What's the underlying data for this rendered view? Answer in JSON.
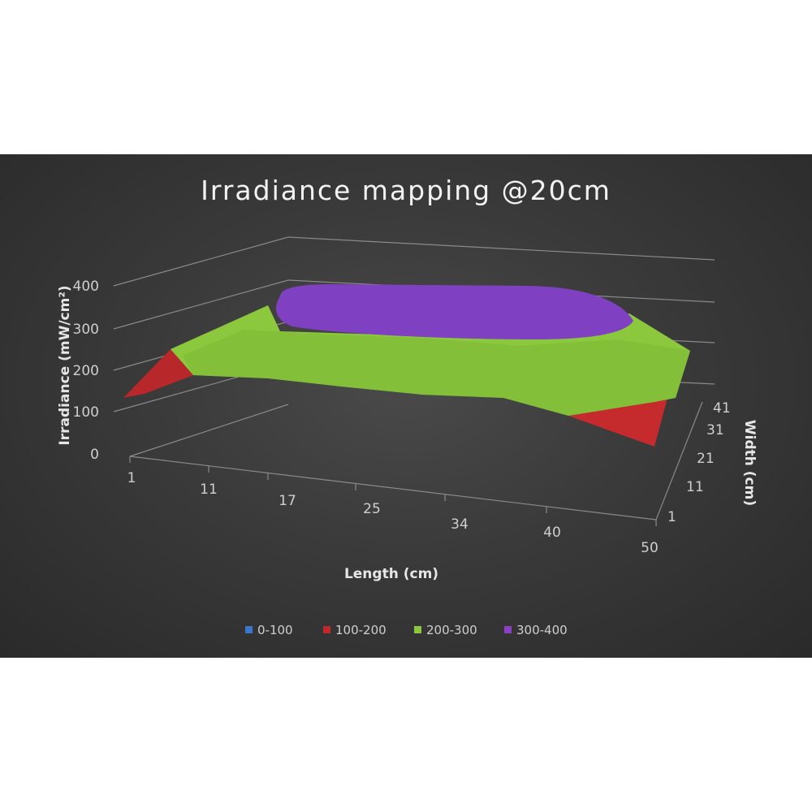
{
  "chart_data": {
    "type": "surface-3d",
    "title": "Irradiance mapping @20cm",
    "xlabel": "Length (cm)",
    "ylabel": "Width (cm)",
    "zlabel": "Irradiance (mW/cm²)",
    "x_ticks": [
      "1",
      "11",
      "17",
      "25",
      "34",
      "40",
      "50"
    ],
    "y_ticks": [
      "1",
      "11",
      "21",
      "31",
      "41"
    ],
    "z_ticks": [
      "0",
      "100",
      "200",
      "300",
      "400"
    ],
    "zlim": [
      0,
      400
    ],
    "grid": true,
    "legend_position": "bottom",
    "bands": [
      {
        "label": "0-100",
        "range": [
          0,
          100
        ],
        "color": "#3a78c9"
      },
      {
        "label": "100-200",
        "range": [
          100,
          200
        ],
        "color": "#c0282b"
      },
      {
        "label": "200-300",
        "range": [
          200,
          300
        ],
        "color": "#8cc63e"
      },
      {
        "label": "300-400",
        "range": [
          300,
          400
        ],
        "color": "#8a3fc4"
      }
    ],
    "regions": [
      {
        "band": "100-200",
        "description": "corners"
      },
      {
        "band": "200-300",
        "description": "outer area"
      },
      {
        "band": "300-400",
        "description": "central plateau"
      }
    ]
  }
}
